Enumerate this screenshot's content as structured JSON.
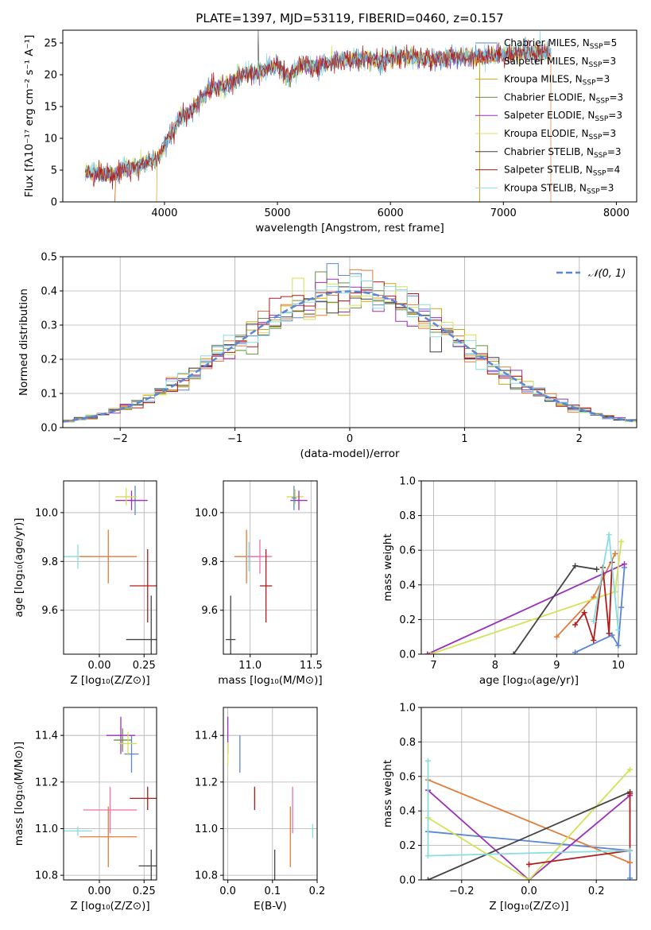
{
  "title": "PLATE=1397, MJD=53119, FIBERID=0460, z=0.157",
  "colors": {
    "chabrier_miles": "#5b86d6",
    "salpeter_miles": "#e07b39",
    "kroupa_miles": "#d4a017",
    "chabrier_elodie": "#6b8e4e",
    "salpeter_elodie": "#9b30b9",
    "kroupa_elodie": "#d4e157",
    "chabrier_stelib": "#444444",
    "salpeter_stelib": "#b01c1c",
    "kroupa_stelib": "#88dde0",
    "pink": "#f06eaa",
    "normal": "#5b86d6"
  },
  "chart_data": [
    {
      "id": "spectrum",
      "type": "line",
      "xlabel": "wavelength [Angstrom, rest frame]",
      "ylabel": "Flux [fλ10⁻¹⁷ erg cm⁻² s⁻¹ A⁻¹]",
      "xlim": [
        3100,
        8180
      ],
      "ylim": [
        0,
        27
      ],
      "xticks": [
        4000,
        5000,
        6000,
        7000,
        8000
      ],
      "yticks": [
        0,
        5,
        10,
        15,
        20,
        25
      ],
      "continuum": {
        "x": [
          3300,
          3450,
          3550,
          3650,
          3750,
          3850,
          3950,
          4050,
          4150,
          4300,
          4400,
          4550,
          4700,
          4850,
          5000,
          5100,
          5200,
          5350,
          5500,
          5650,
          5800,
          5900,
          6000,
          6150,
          6300,
          6450,
          6600,
          6800,
          7000,
          7200,
          7400
        ],
        "y": [
          4.8,
          4.5,
          4.0,
          5.5,
          5.5,
          6.2,
          7.0,
          10.5,
          13.2,
          15.5,
          18.0,
          18.2,
          20.0,
          20.5,
          21.5,
          19.5,
          21.5,
          21.2,
          22.2,
          22.3,
          22.6,
          22.0,
          22.4,
          22.9,
          22.4,
          22.6,
          22.8,
          22.8,
          23.2,
          23.5,
          23.4
        ]
      },
      "legend": [
        {
          "label": "Chabrier MILES, N",
          "sub": "SSP",
          "tail": "=5",
          "color": "chabrier_miles"
        },
        {
          "label": "Salpeter MILES, N",
          "sub": "SSP",
          "tail": "=3",
          "color": "salpeter_miles"
        },
        {
          "label": "Kroupa MILES, N",
          "sub": "SSP",
          "tail": "=3",
          "color": "kroupa_miles"
        },
        {
          "label": "Chabrier ELODIE, N",
          "sub": "SSP",
          "tail": "=3",
          "color": "chabrier_elodie"
        },
        {
          "label": "Salpeter ELODIE, N",
          "sub": "SSP",
          "tail": "=3",
          "color": "salpeter_elodie"
        },
        {
          "label": "Kroupa ELODIE, N",
          "sub": "SSP",
          "tail": "=3",
          "color": "kroupa_elodie"
        },
        {
          "label": "Chabrier STELIB, N",
          "sub": "SSP",
          "tail": "=3",
          "color": "chabrier_stelib"
        },
        {
          "label": "Salpeter STELIB, N",
          "sub": "SSP",
          "tail": "=4",
          "color": "salpeter_stelib"
        },
        {
          "label": "Kroupa STELIB, N",
          "sub": "SSP",
          "tail": "=3",
          "color": "kroupa_stelib"
        }
      ]
    },
    {
      "id": "residuals",
      "type": "histogram",
      "xlabel": "(data-model)/error",
      "ylabel": "Normed distribution",
      "xlim": [
        -2.5,
        2.5
      ],
      "ylim": [
        0,
        0.5
      ],
      "xticks": [
        -2,
        -1,
        0,
        1,
        2
      ],
      "yticks": [
        0.0,
        0.1,
        0.2,
        0.3,
        0.4,
        0.5
      ],
      "bin_width": 0.1,
      "legend": "𝒩(0, 1)",
      "series_colors": [
        "chabrier_miles",
        "salpeter_miles",
        "kroupa_miles",
        "chabrier_elodie",
        "salpeter_elodie",
        "kroupa_elodie",
        "chabrier_stelib",
        "salpeter_stelib",
        "kroupa_stelib"
      ]
    },
    {
      "id": "age_vs_Z",
      "type": "errorbar",
      "xlabel": "Z [log₁₀(Z/Z⊙)]",
      "ylabel": "age  [log₁₀(age/yr)]",
      "xlim": [
        -0.2,
        0.32
      ],
      "ylim": [
        9.42,
        10.13
      ],
      "xticks": [
        0.0,
        0.25
      ],
      "yticks": [
        9.6,
        9.8,
        10.0
      ],
      "points": [
        {
          "x": -0.12,
          "xe": 0.08,
          "y": 9.82,
          "ye": 0.05,
          "color": "kroupa_stelib"
        },
        {
          "x": 0.05,
          "xe": 0.16,
          "y": 9.82,
          "ye": 0.11,
          "color": "salpeter_miles"
        },
        {
          "x": 0.27,
          "xe": 0.1,
          "y": 9.7,
          "ye": 0.15,
          "color": "salpeter_stelib"
        },
        {
          "x": 0.29,
          "xe": 0.14,
          "y": 9.48,
          "ye": 0.18,
          "color": "chabrier_stelib"
        },
        {
          "x": 0.2,
          "xe": 0.03,
          "y": 10.05,
          "ye": 0.06,
          "color": "chabrier_miles"
        },
        {
          "x": 0.18,
          "xe": 0.09,
          "y": 10.05,
          "ye": 0.04,
          "color": "salpeter_elodie"
        },
        {
          "x": 0.15,
          "xe": 0.06,
          "y": 10.065,
          "ye": 0.035,
          "color": "kroupa_elodie"
        }
      ]
    },
    {
      "id": "age_vs_mass",
      "type": "errorbar",
      "xlabel": "mass [log₁₀(M/M⊙)]",
      "ylabel": "",
      "xlim": [
        10.78,
        11.55
      ],
      "ylim": [
        9.42,
        10.13
      ],
      "xticks": [
        11.0,
        11.5
      ],
      "yticks": [
        9.6,
        9.8,
        10.0
      ],
      "points": [
        {
          "x": 10.84,
          "xe": 0.04,
          "y": 9.48,
          "ye": 0.18,
          "color": "chabrier_stelib"
        },
        {
          "x": 10.97,
          "xe": 0.1,
          "y": 9.82,
          "ye": 0.11,
          "color": "salpeter_miles"
        },
        {
          "x": 10.99,
          "xe": 0.02,
          "y": 9.82,
          "ye": 0.06,
          "color": "kroupa_stelib"
        },
        {
          "x": 11.08,
          "xe": 0.1,
          "y": 9.82,
          "ye": 0.07,
          "color": "pink"
        },
        {
          "x": 11.13,
          "xe": 0.05,
          "y": 9.7,
          "ye": 0.15,
          "color": "salpeter_stelib"
        },
        {
          "x": 11.37,
          "xe": 0.07,
          "y": 10.065,
          "ye": 0.03,
          "color": "kroupa_elodie"
        },
        {
          "x": 11.4,
          "xe": 0.07,
          "y": 10.05,
          "ye": 0.04,
          "color": "salpeter_elodie"
        },
        {
          "x": 11.36,
          "xe": 0.02,
          "y": 10.06,
          "ye": 0.05,
          "color": "chabrier_miles"
        }
      ]
    },
    {
      "id": "weight_vs_age",
      "type": "line",
      "xlabel": "age  [log₁₀(age/yr)]",
      "ylabel": "mass weight",
      "xlim": [
        6.8,
        10.3
      ],
      "ylim": [
        0,
        1.0
      ],
      "xticks": [
        7,
        8,
        9,
        10
      ],
      "yticks": [
        0.0,
        0.2,
        0.4,
        0.6,
        0.8,
        1.0
      ],
      "series": [
        {
          "color": "chabrier_miles",
          "x": [
            9.3,
            9.9,
            10.0,
            10.05,
            10.1
          ],
          "y": [
            0.01,
            0.11,
            0.05,
            0.27,
            0.5
          ]
        },
        {
          "color": "salpeter_miles",
          "x": [
            9.0,
            9.6,
            9.95
          ],
          "y": [
            0.1,
            0.33,
            0.58
          ]
        },
        {
          "color": "salpeter_elodie",
          "x": [
            6.9,
            10.1
          ],
          "y": [
            0.0,
            0.52
          ]
        },
        {
          "color": "kroupa_elodie",
          "x": [
            6.95,
            9.95,
            10.05
          ],
          "y": [
            0.0,
            0.36,
            0.65
          ]
        },
        {
          "color": "chabrier_stelib",
          "x": [
            8.3,
            9.3,
            9.65
          ],
          "y": [
            0.0,
            0.51,
            0.49
          ]
        },
        {
          "color": "salpeter_stelib",
          "x": [
            9.3,
            9.45,
            9.6,
            9.75,
            9.85,
            9.9
          ],
          "y": [
            0.17,
            0.24,
            0.08,
            0.5,
            0.12,
            0.53
          ]
        },
        {
          "color": "kroupa_stelib",
          "x": [
            9.6,
            9.85,
            10.0
          ],
          "y": [
            0.19,
            0.69,
            0.14
          ]
        }
      ]
    },
    {
      "id": "mass_vs_Z",
      "type": "errorbar",
      "xlabel": "Z [log₁₀(Z/Z⊙)]",
      "ylabel": "mass [log₁₀(M/M⊙)]",
      "xlim": [
        -0.2,
        0.32
      ],
      "ylim": [
        10.78,
        11.52
      ],
      "xticks": [
        0.0,
        0.25
      ],
      "yticks": [
        10.8,
        11.0,
        11.2,
        11.4
      ],
      "points": [
        {
          "x": -0.12,
          "xe": 0.08,
          "y": 10.99,
          "ye": 0.02,
          "color": "kroupa_stelib"
        },
        {
          "x": 0.05,
          "xe": 0.16,
          "y": 10.965,
          "ye": 0.13,
          "color": "salpeter_miles"
        },
        {
          "x": 0.06,
          "xe": 0.15,
          "y": 11.08,
          "ye": 0.1,
          "color": "pink"
        },
        {
          "x": 0.27,
          "xe": 0.1,
          "y": 11.13,
          "ye": 0.05,
          "color": "salpeter_stelib"
        },
        {
          "x": 0.29,
          "xe": 0.07,
          "y": 10.84,
          "ye": 0.07,
          "color": "chabrier_stelib"
        },
        {
          "x": 0.18,
          "xe": 0.04,
          "y": 11.32,
          "ye": 0.08,
          "color": "chabrier_miles"
        },
        {
          "x": 0.12,
          "xe": 0.08,
          "y": 11.4,
          "ye": 0.08,
          "color": "salpeter_elodie"
        },
        {
          "x": 0.13,
          "xe": 0.05,
          "y": 11.38,
          "ye": 0.05,
          "color": "chabrier_elodie"
        },
        {
          "x": 0.16,
          "xe": 0.05,
          "y": 11.365,
          "ye": 0.05,
          "color": "kroupa_elodie"
        }
      ]
    },
    {
      "id": "mass_vs_ebv",
      "type": "errorbar",
      "xlabel": "E(B-V)",
      "ylabel": "",
      "xlim": [
        -0.01,
        0.2
      ],
      "ylim": [
        10.78,
        11.52
      ],
      "xticks": [
        0.0,
        0.1,
        0.2
      ],
      "yticks": [
        10.8,
        11.0,
        11.2,
        11.4
      ],
      "points": [
        {
          "x": 0.0,
          "xe": 0.0,
          "y": 11.4,
          "ye": 0.08,
          "color": "salpeter_elodie"
        },
        {
          "x": 0.0,
          "xe": 0.0,
          "y": 11.32,
          "ye": 0.05,
          "color": "kroupa_elodie"
        },
        {
          "x": 0.027,
          "xe": 0.0,
          "y": 11.32,
          "ye": 0.08,
          "color": "chabrier_miles"
        },
        {
          "x": 0.06,
          "xe": 0.0,
          "y": 11.13,
          "ye": 0.05,
          "color": "salpeter_stelib"
        },
        {
          "x": 0.105,
          "xe": 0.0,
          "y": 10.84,
          "ye": 0.07,
          "color": "chabrier_stelib"
        },
        {
          "x": 0.14,
          "xe": 0.0,
          "y": 10.965,
          "ye": 0.13,
          "color": "salpeter_miles"
        },
        {
          "x": 0.145,
          "xe": 0.0,
          "y": 11.08,
          "ye": 0.1,
          "color": "pink"
        },
        {
          "x": 0.19,
          "xe": 0.0,
          "y": 10.99,
          "ye": 0.03,
          "color": "kroupa_stelib"
        }
      ]
    },
    {
      "id": "weight_vs_Z",
      "type": "line",
      "xlabel": "Z [log₁₀(Z/Z⊙)]",
      "ylabel": "mass weight",
      "xlim": [
        -0.32,
        0.32
      ],
      "ylim": [
        0,
        1.0
      ],
      "xticks": [
        -0.2,
        0.0,
        0.2
      ],
      "yticks": [
        0.0,
        0.2,
        0.4,
        0.6,
        0.8,
        1.0
      ],
      "series": [
        {
          "color": "chabrier_miles",
          "x": [
            -0.3,
            0.3,
            0.3
          ],
          "y": [
            0.28,
            0.17,
            0.01
          ]
        },
        {
          "color": "salpeter_miles",
          "x": [
            -0.3,
            0.3
          ],
          "y": [
            0.58,
            0.1
          ]
        },
        {
          "color": "salpeter_elodie",
          "x": [
            -0.3,
            0.0,
            0.3
          ],
          "y": [
            0.52,
            0.0,
            0.49
          ]
        },
        {
          "color": "kroupa_elodie",
          "x": [
            -0.3,
            0.0,
            0.3
          ],
          "y": [
            0.36,
            0.0,
            0.64
          ]
        },
        {
          "color": "chabrier_stelib",
          "x": [
            -0.3,
            0.3
          ],
          "y": [
            0.0,
            0.51
          ]
        },
        {
          "color": "salpeter_stelib",
          "x": [
            0.0,
            0.3,
            0.3
          ],
          "y": [
            0.09,
            0.17,
            0.5
          ]
        },
        {
          "color": "kroupa_stelib",
          "x": [
            -0.3,
            -0.3,
            0.3
          ],
          "y": [
            0.69,
            0.14,
            0.17
          ]
        }
      ]
    }
  ]
}
